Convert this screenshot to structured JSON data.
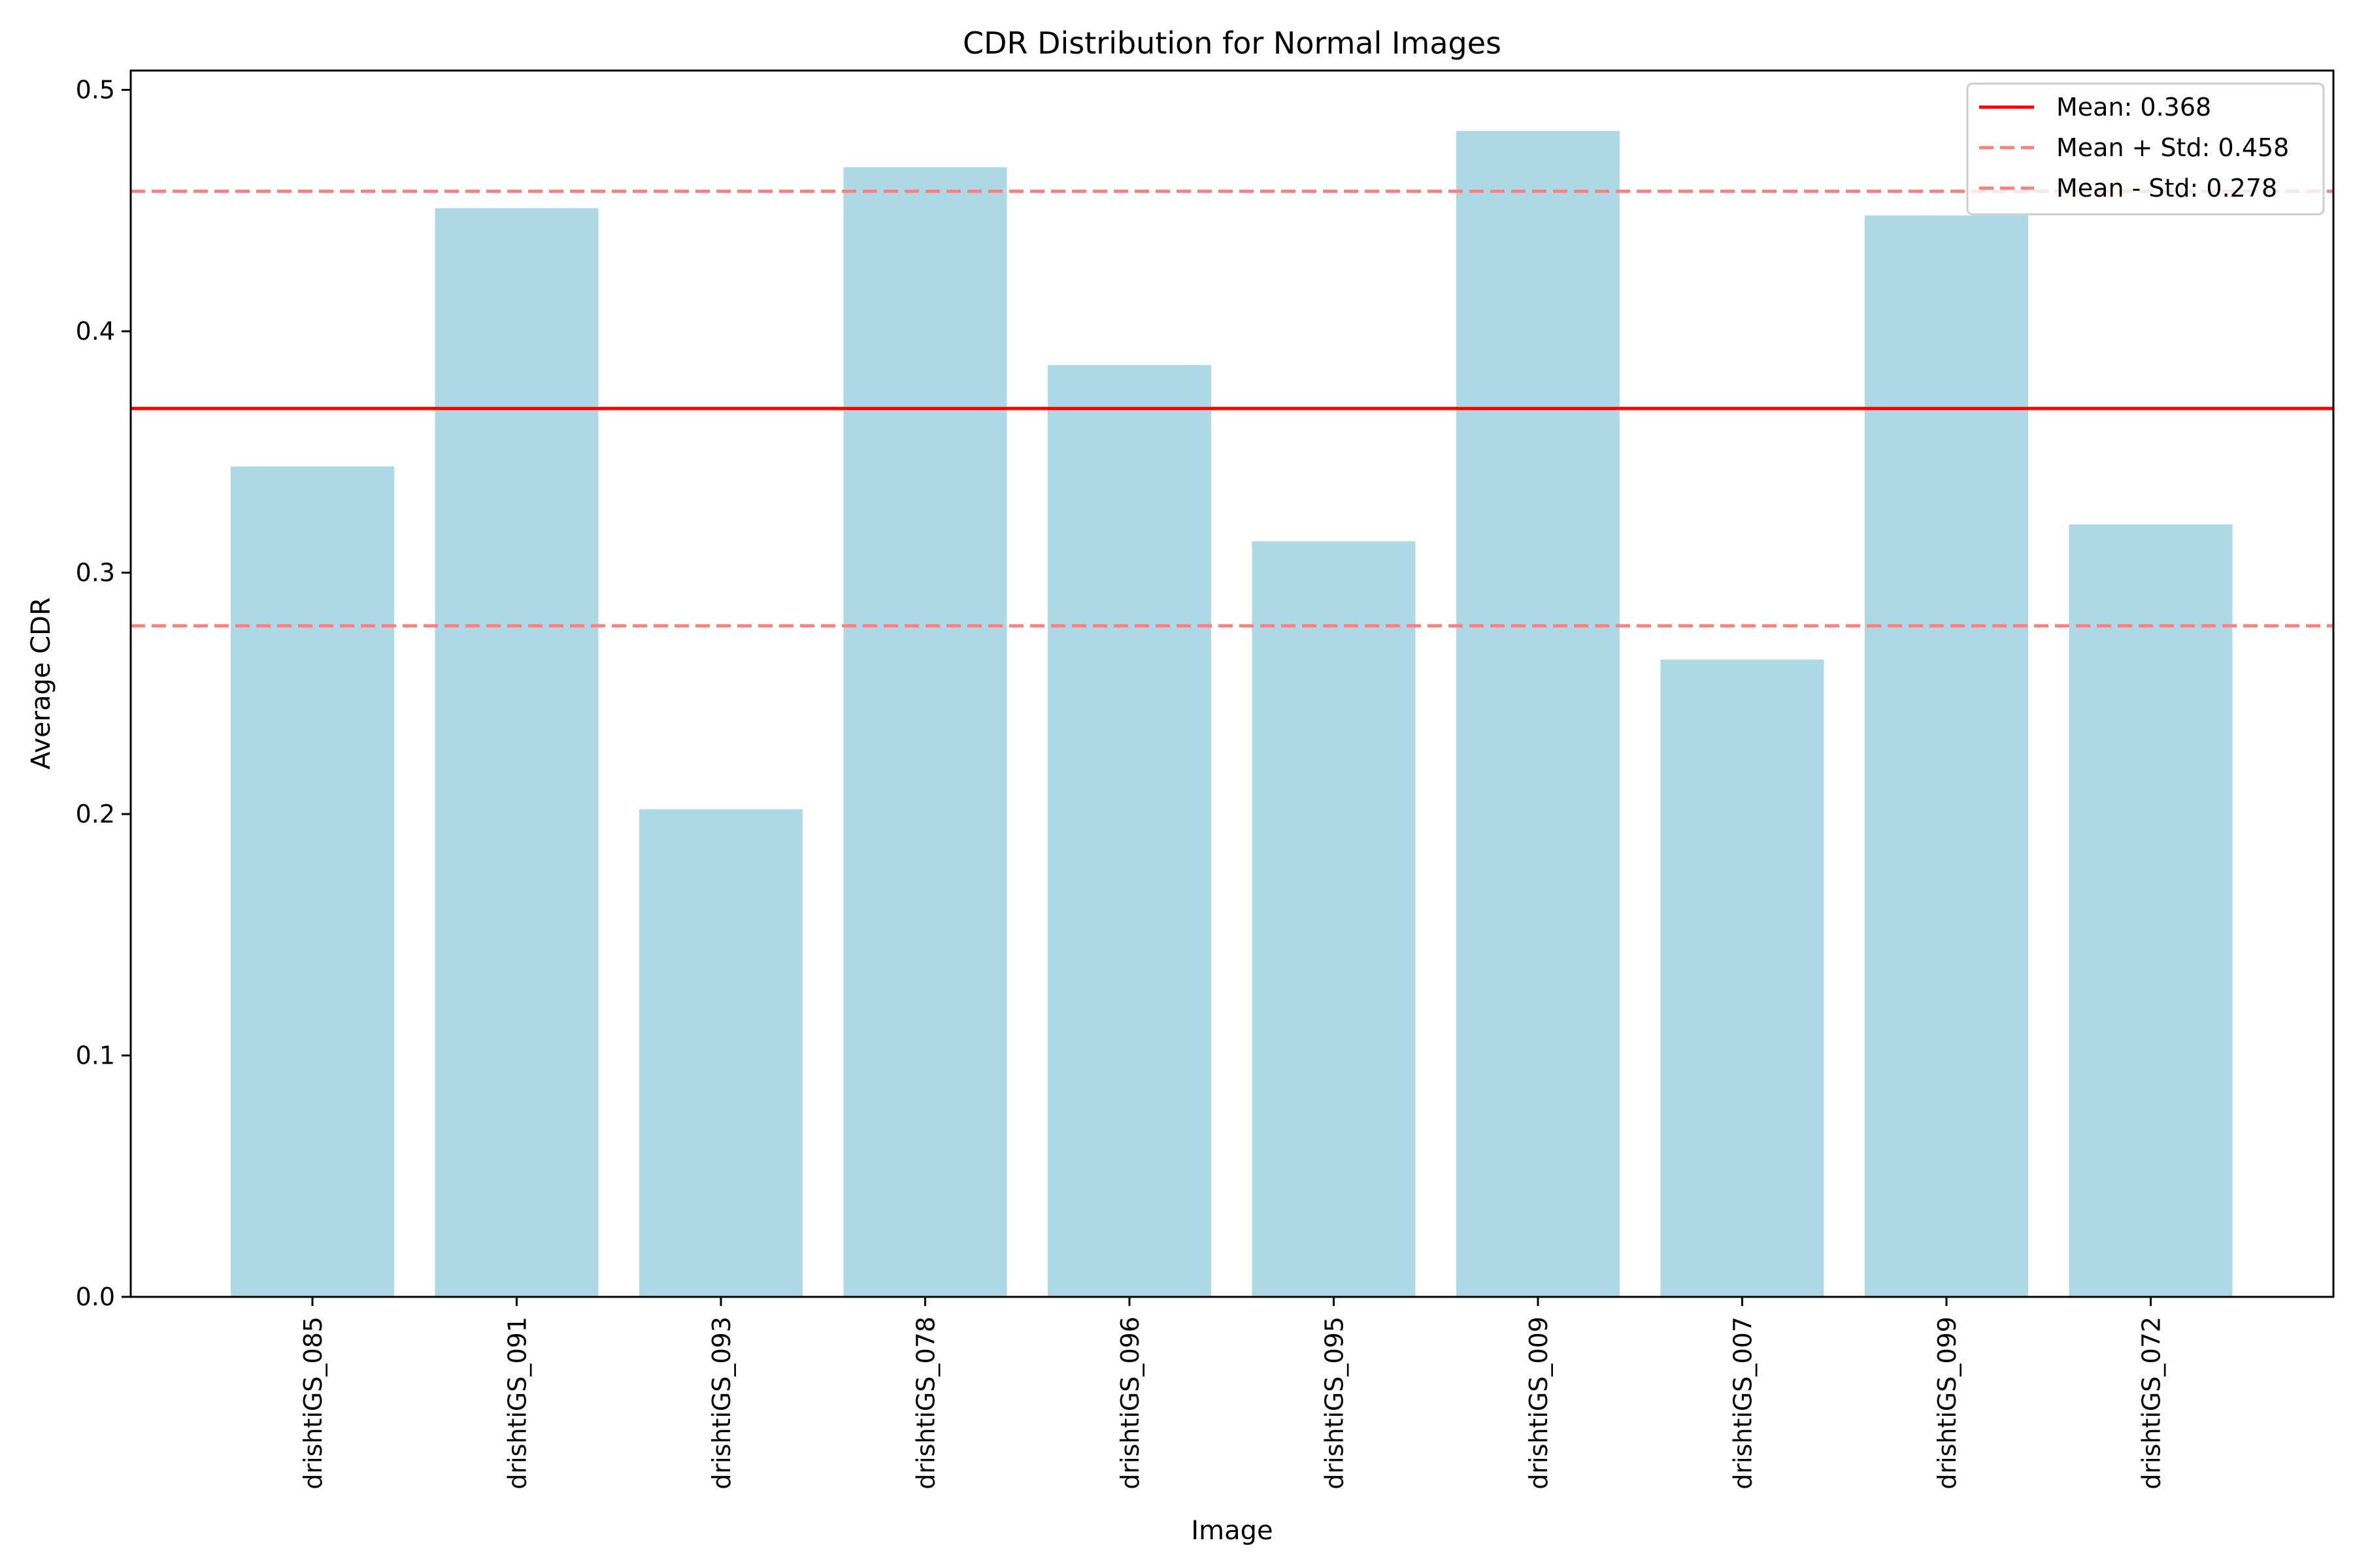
{
  "chart_data": {
    "type": "bar",
    "title": "CDR Distribution for Normal Images",
    "xlabel": "Image",
    "ylabel": "Average CDR",
    "categories": [
      "drishtiGS_085",
      "drishtiGS_091",
      "drishtiGS_093",
      "drishtiGS_078",
      "drishtiGS_096",
      "drishtiGS_095",
      "drishtiGS_009",
      "drishtiGS_007",
      "drishtiGS_099",
      "drishtiGS_072"
    ],
    "values": [
      0.344,
      0.451,
      0.202,
      0.468,
      0.386,
      0.313,
      0.483,
      0.264,
      0.448,
      0.32
    ],
    "ylim": [
      0,
      0.508
    ],
    "yticks": [
      0.0,
      0.1,
      0.2,
      0.3,
      0.4,
      0.5
    ],
    "ytick_labels": [
      "0.0",
      "0.1",
      "0.2",
      "0.3",
      "0.4",
      "0.5"
    ],
    "grid": false,
    "bar_color": "#add8e6",
    "reference_lines": [
      {
        "label": "Mean: 0.368",
        "value": 0.368,
        "style": "solid",
        "color": "#ff0000"
      },
      {
        "label": "Mean + Std: 0.458",
        "value": 0.458,
        "style": "dashed",
        "color": "#ff7f7f"
      },
      {
        "label": "Mean - Std: 0.278",
        "value": 0.278,
        "style": "dashed",
        "color": "#ff7f7f"
      }
    ],
    "legend": {
      "placement": "top-right"
    }
  }
}
